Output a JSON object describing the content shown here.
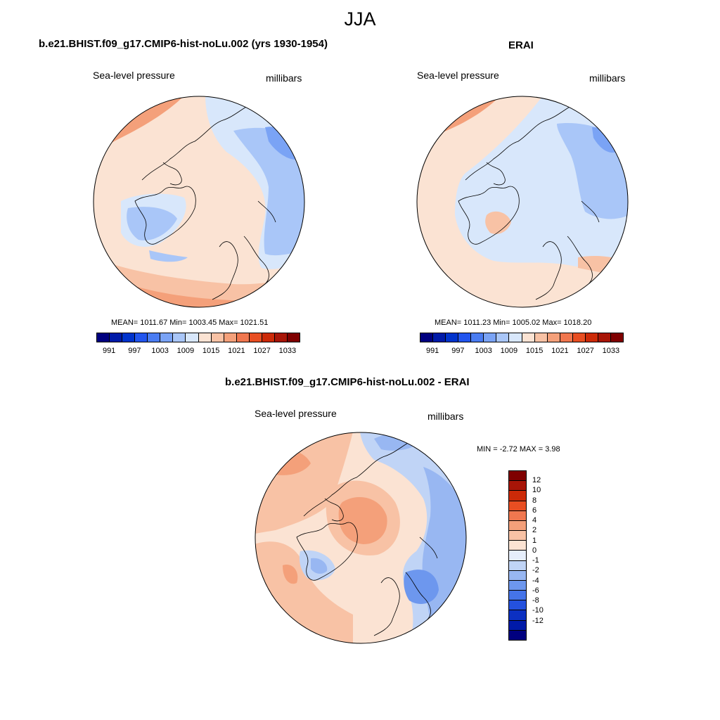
{
  "main_title": "JJA",
  "panels": [
    {
      "title": "b.e21.BHIST.f09_g17.CMIP6-hist-noLu.002 (yrs 1930-1954)",
      "var_label": "Sea-level pressure",
      "unit_label": "millibars",
      "stats": "MEAN= 1011.67  Min= 1003.45  Max= 1021.51"
    },
    {
      "title": "ERAI",
      "var_label": "Sea-level pressure",
      "unit_label": "millibars",
      "stats": "MEAN= 1011.23  Min= 1005.02  Max= 1018.20"
    },
    {
      "title": "b.e21.BHIST.f09_g17.CMIP6-hist-noLu.002 - ERAI",
      "var_label": "Sea-level pressure",
      "unit_label": "millibars",
      "stats": "MIN =  -2.72 MAX =   3.98"
    }
  ],
  "colorbar_abs": {
    "colors": [
      "#00007f",
      "#001aa8",
      "#0033cc",
      "#2255ee",
      "#4a7cf2",
      "#7aa3f5",
      "#a9c6f8",
      "#d8e7fb",
      "#fbe3d3",
      "#f8c2a5",
      "#f4a07a",
      "#f0774f",
      "#e84e22",
      "#cc2a08",
      "#a81507",
      "#7f0000"
    ],
    "tick_labels": [
      "991",
      "997",
      "1003",
      "1009",
      "1015",
      "1021",
      "1027",
      "1033"
    ]
  },
  "colorbar_diff": {
    "colors": [
      "#7f0000",
      "#a81507",
      "#cc2a08",
      "#e84e22",
      "#f0774f",
      "#f4a07a",
      "#f8c2a5",
      "#fbe3d3",
      "#e6eefb",
      "#c0d4f6",
      "#98b7f2",
      "#6d97ee",
      "#4574e9",
      "#2451de",
      "#0c30c2",
      "#001aa8",
      "#00007f"
    ],
    "tick_labels": [
      "12",
      "10",
      "8",
      "6",
      "4",
      "2",
      "1",
      "0",
      "-1",
      "-2",
      "-4",
      "-6",
      "-8",
      "-10",
      "-12"
    ]
  }
}
